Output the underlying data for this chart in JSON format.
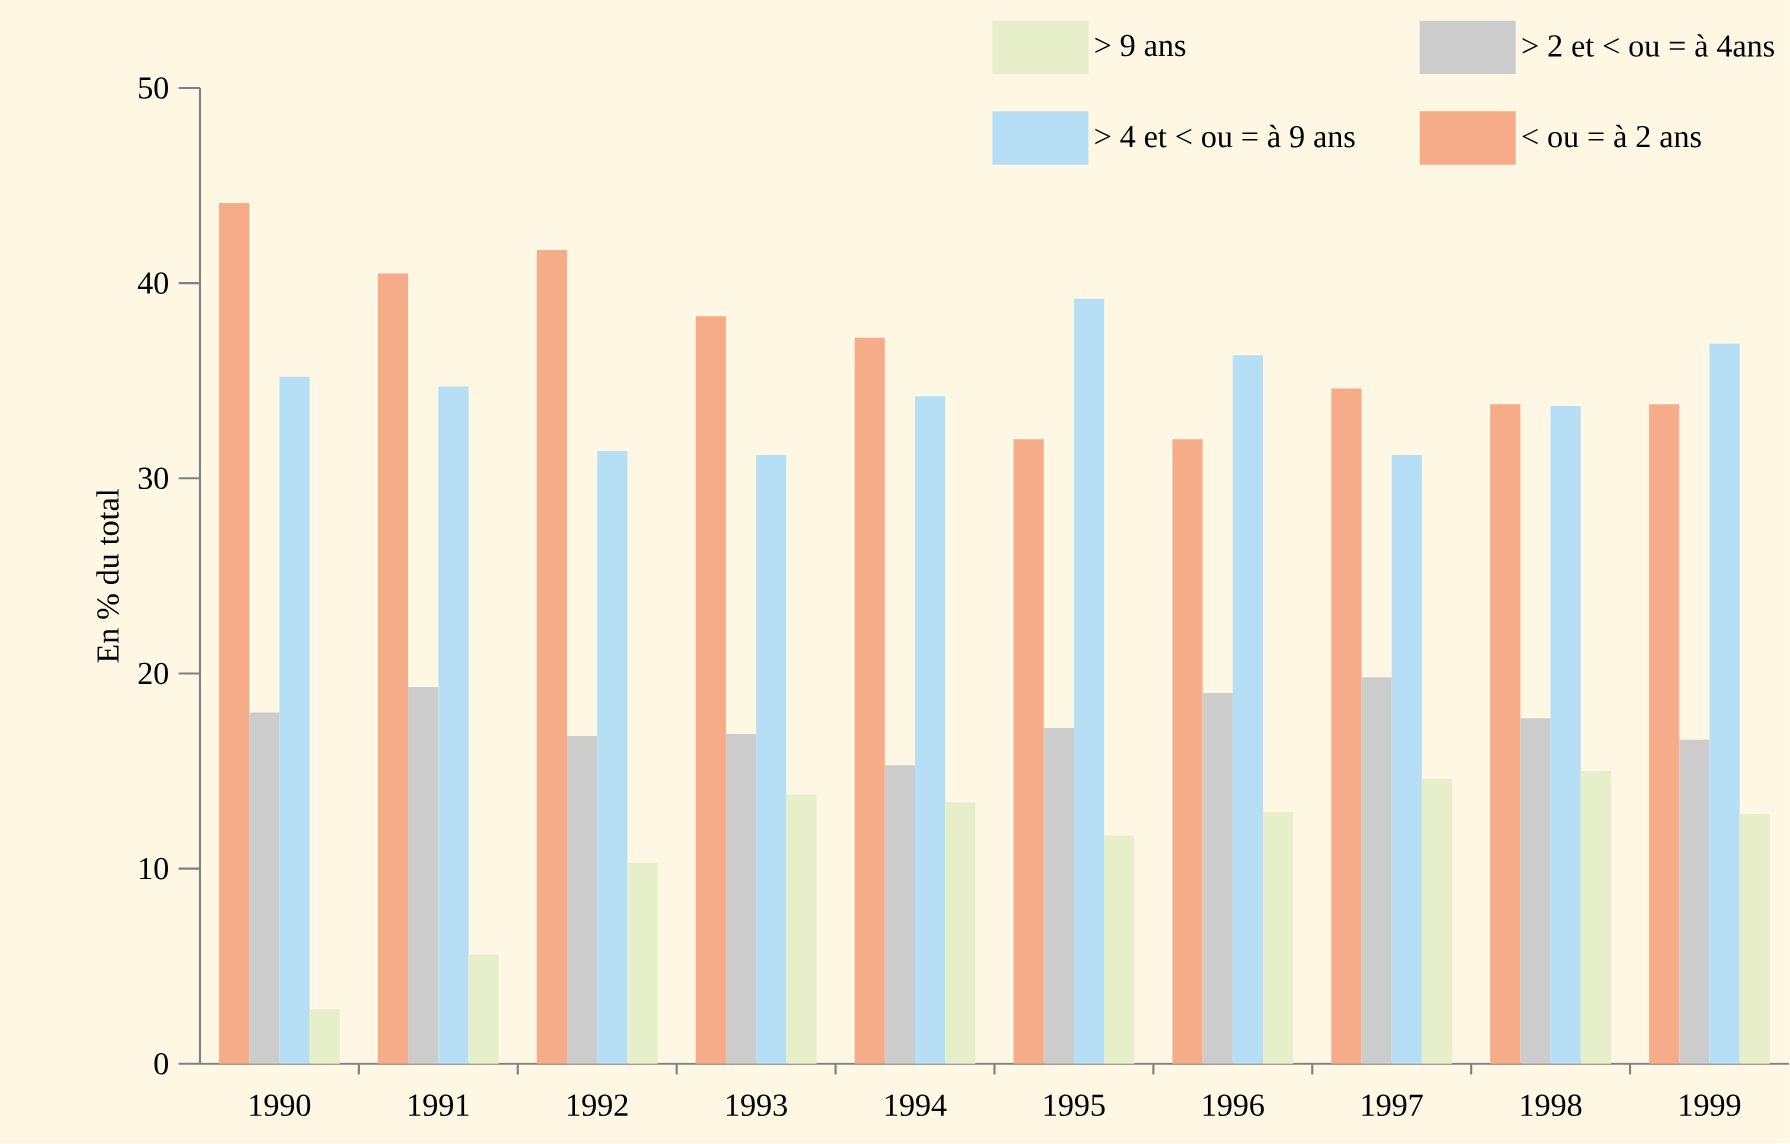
{
  "chart_data": {
    "type": "bar",
    "ylabel": "En % du total",
    "categories": [
      "1990",
      "1991",
      "1992",
      "1993",
      "1994",
      "1995",
      "1996",
      "1997",
      "1998",
      "1999"
    ],
    "series": [
      {
        "name": "< ou = à 2 ans",
        "color": "#f6ac88",
        "values": [
          44.1,
          40.5,
          41.7,
          38.3,
          37.2,
          32.0,
          32.0,
          34.6,
          33.8,
          33.8
        ]
      },
      {
        "name": "> 2 et < ou = à 4ans",
        "color": "#cccccc",
        "values": [
          18.0,
          19.3,
          16.8,
          16.9,
          15.3,
          17.2,
          19.0,
          19.8,
          17.7,
          16.6
        ]
      },
      {
        "name": "> 4 et < ou = à 9 ans",
        "color": "#b6dff6",
        "values": [
          35.2,
          34.7,
          31.4,
          31.2,
          34.2,
          39.2,
          36.3,
          31.2,
          33.7,
          36.9
        ]
      },
      {
        "name": "> 9 ans",
        "color": "#e7efca",
        "values": [
          2.8,
          5.6,
          10.3,
          13.8,
          13.4,
          11.7,
          12.9,
          14.6,
          15.0,
          12.8
        ]
      }
    ],
    "ylim": [
      0,
      50
    ],
    "yticks": [
      0,
      10,
      20,
      30,
      40,
      50
    ],
    "legend": "top right",
    "grid": false
  }
}
